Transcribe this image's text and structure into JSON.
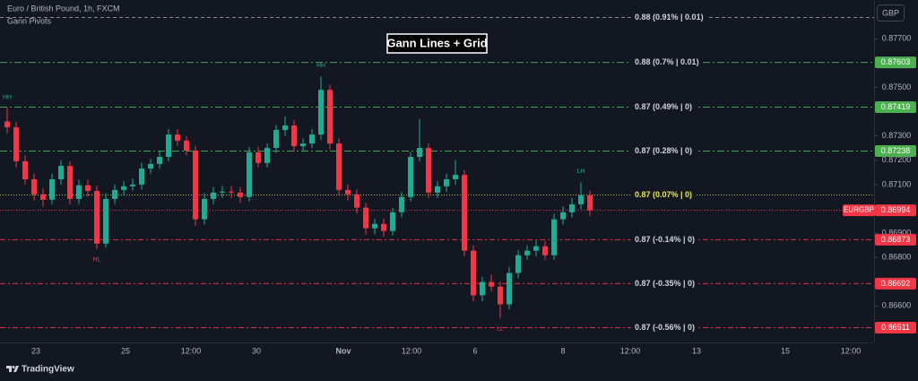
{
  "chart_data": {
    "type": "candlestick",
    "symbol_title": "Euro / British Pound, 1h, FXCM",
    "indicator": "Gann Pivots",
    "title": "Gann Lines + Grid",
    "currency": "GBP",
    "brand": "TradingView",
    "ylim": [
      0.8645,
      0.8786
    ],
    "yticks": [
      {
        "value": 0.877,
        "label": "0.87700"
      },
      {
        "value": 0.875,
        "label": "0.87500"
      },
      {
        "value": 0.873,
        "label": "0.87300"
      },
      {
        "value": 0.872,
        "label": "0.87200"
      },
      {
        "value": 0.871,
        "label": "0.87100"
      },
      {
        "value": 0.869,
        "label": "0.86900"
      },
      {
        "value": 0.868,
        "label": "0.86800"
      },
      {
        "value": 0.866,
        "label": "0.86600"
      }
    ],
    "time_labels": [
      "23",
      "25",
      "12:00",
      "30",
      "Nov",
      "12:00",
      "6",
      "8",
      "12:00",
      "13",
      "15",
      "12:00"
    ],
    "up_color": "#22ab94",
    "down_color": "#f23645",
    "open": [
      0.8736,
      0.87336,
      0.87196,
      0.87122,
      0.8706,
      0.87038,
      0.87122,
      0.87177,
      0.87041,
      0.87097,
      0.87074,
      0.86857,
      0.87041,
      0.87078,
      0.87093,
      0.871,
      0.87166,
      0.87185,
      0.87214,
      0.87306,
      0.87281,
      0.8724,
      0.86957,
      0.87041,
      0.87067,
      0.87071,
      0.87067,
      0.87049,
      0.87233,
      0.87189,
      0.87251,
      0.87325,
      0.87343,
      0.87258,
      0.87269,
      0.87306,
      0.8749,
      0.87269,
      0.87078,
      0.8706,
      0.87005,
      0.8692,
      0.86938,
      0.86909,
      0.86986,
      0.87049,
      0.87214,
      0.87251,
      0.87067,
      0.87093,
      0.87122,
      0.8714,
      0.86828,
      0.86644,
      0.86699,
      0.8668,
      0.86607,
      0.86736,
      0.86809,
      0.86828,
      0.86846,
      0.86809,
      0.86957,
      0.86986,
      0.87019,
      0.87056
    ],
    "high": [
      0.87415,
      0.8736,
      0.8722,
      0.87145,
      0.87085,
      0.87145,
      0.872,
      0.87195,
      0.8712,
      0.8712,
      0.87095,
      0.87065,
      0.871,
      0.87115,
      0.87125,
      0.8719,
      0.87205,
      0.8724,
      0.8733,
      0.8733,
      0.873,
      0.8726,
      0.87065,
      0.8709,
      0.87095,
      0.87095,
      0.8709,
      0.87255,
      0.87255,
      0.8727,
      0.87345,
      0.8738,
      0.87365,
      0.8729,
      0.8733,
      0.87545,
      0.8751,
      0.8729,
      0.871,
      0.8708,
      0.87025,
      0.8696,
      0.8696,
      0.87005,
      0.8707,
      0.87235,
      0.8737,
      0.8727,
      0.87115,
      0.87145,
      0.872,
      0.8716,
      0.8685,
      0.8672,
      0.8673,
      0.867,
      0.8676,
      0.8683,
      0.8685,
      0.8687,
      0.8687,
      0.8698,
      0.8701,
      0.87045,
      0.8711,
      0.87075
    ],
    "low": [
      0.8731,
      0.8717,
      0.871,
      0.87035,
      0.8701,
      0.8702,
      0.871,
      0.8702,
      0.8702,
      0.8705,
      0.86835,
      0.8684,
      0.8702,
      0.87055,
      0.87075,
      0.8708,
      0.87145,
      0.87165,
      0.87195,
      0.8726,
      0.8722,
      0.8693,
      0.86935,
      0.8702,
      0.87045,
      0.87045,
      0.87025,
      0.8703,
      0.8717,
      0.8717,
      0.8723,
      0.873,
      0.87235,
      0.8724,
      0.8725,
      0.87285,
      0.87245,
      0.87055,
      0.87035,
      0.8698,
      0.86895,
      0.86895,
      0.86885,
      0.8689,
      0.86965,
      0.8703,
      0.87195,
      0.87045,
      0.87045,
      0.8707,
      0.871,
      0.86805,
      0.8662,
      0.8662,
      0.8666,
      0.8655,
      0.86585,
      0.86715,
      0.8679,
      0.86805,
      0.8679,
      0.8679,
      0.86935,
      0.86965,
      0.87,
      0.8697
    ],
    "close": [
      0.87336,
      0.87196,
      0.87122,
      0.8706,
      0.87038,
      0.87122,
      0.87177,
      0.87041,
      0.87097,
      0.87074,
      0.86857,
      0.87041,
      0.87078,
      0.87093,
      0.871,
      0.87166,
      0.87185,
      0.87214,
      0.87306,
      0.87281,
      0.8724,
      0.86957,
      0.87041,
      0.87067,
      0.87071,
      0.87067,
      0.87049,
      0.87233,
      0.87189,
      0.87251,
      0.87325,
      0.87343,
      0.87258,
      0.87269,
      0.87306,
      0.8749,
      0.87269,
      0.87078,
      0.8706,
      0.87005,
      0.8692,
      0.86938,
      0.86909,
      0.86986,
      0.87049,
      0.87214,
      0.87251,
      0.87067,
      0.87093,
      0.87122,
      0.8714,
      0.86828,
      0.86644,
      0.86699,
      0.8668,
      0.86607,
      0.86736,
      0.86809,
      0.86828,
      0.86846,
      0.86809,
      0.86957,
      0.86986,
      0.87019,
      0.87056,
      0.86994
    ],
    "pivot_labels": [
      "HH",
      "HL",
      "HH",
      "LL",
      "LH"
    ],
    "levels": [
      {
        "label": "0.88 (0.91% | 0.01)",
        "value": 0.87788,
        "color": "#9598a1"
      },
      {
        "label": "0.88 (0.7% | 0.01)",
        "value": 0.87603,
        "color": "#4caf50"
      },
      {
        "label": "0.87 (0.49% | 0)",
        "value": 0.87419,
        "color": "#4caf50"
      },
      {
        "label": "0.87 (0.28% | 0)",
        "value": 0.87238,
        "color": "#4caf50"
      },
      {
        "label": "0.87 (0.07% | 0)",
        "value": 0.87057,
        "color": "#d4d433"
      },
      {
        "label": "0.87 (-0.14% | 0)",
        "value": 0.86873,
        "color": "#f23645"
      },
      {
        "label": "0.87 (-0.35% | 0)",
        "value": 0.86692,
        "color": "#f23645"
      },
      {
        "label": "0.87 (-0.56% | 0)",
        "value": 0.86511,
        "color": "#f23645"
      }
    ],
    "last_price": {
      "name": "EURGBP",
      "value": 0.86994,
      "color": "#f23645"
    }
  }
}
